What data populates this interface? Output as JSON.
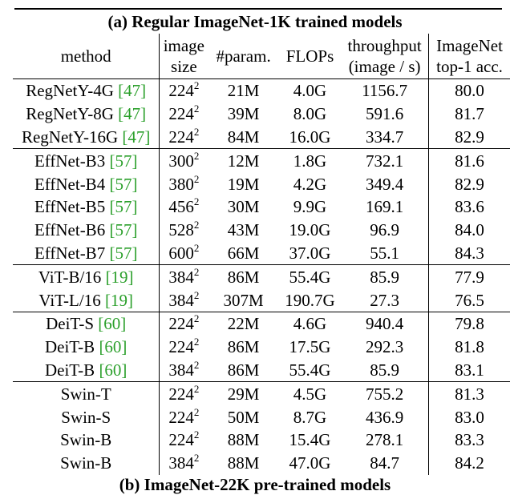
{
  "caption": "(a) Regular ImageNet-1K trained models",
  "headers": {
    "method": "method",
    "image_line1": "image",
    "image_line2": "size",
    "param": "#param.",
    "flops": "FLOPs",
    "throughput_line1": "throughput",
    "throughput_line2": "(image / s)",
    "acc_line1": "ImageNet",
    "acc_line2": "top-1 acc."
  },
  "rows": [
    {
      "name": "RegNetY-4G",
      "ref": "[47]",
      "size": "224",
      "exp": "2",
      "params": "21M",
      "flops": "4.0G",
      "throughput": "1156.7",
      "acc": "80.0"
    },
    {
      "name": "RegNetY-8G",
      "ref": "[47]",
      "size": "224",
      "exp": "2",
      "params": "39M",
      "flops": "8.0G",
      "throughput": "591.6",
      "acc": "81.7"
    },
    {
      "name": "RegNetY-16G",
      "ref": "[47]",
      "size": "224",
      "exp": "2",
      "params": "84M",
      "flops": "16.0G",
      "throughput": "334.7",
      "acc": "82.9"
    },
    {
      "name": "EffNet-B3",
      "ref": "[57]",
      "size": "300",
      "exp": "2",
      "params": "12M",
      "flops": "1.8G",
      "throughput": "732.1",
      "acc": "81.6"
    },
    {
      "name": "EffNet-B4",
      "ref": "[57]",
      "size": "380",
      "exp": "2",
      "params": "19M",
      "flops": "4.2G",
      "throughput": "349.4",
      "acc": "82.9"
    },
    {
      "name": "EffNet-B5",
      "ref": "[57]",
      "size": "456",
      "exp": "2",
      "params": "30M",
      "flops": "9.9G",
      "throughput": "169.1",
      "acc": "83.6"
    },
    {
      "name": "EffNet-B6",
      "ref": "[57]",
      "size": "528",
      "exp": "2",
      "params": "43M",
      "flops": "19.0G",
      "throughput": "96.9",
      "acc": "84.0"
    },
    {
      "name": "EffNet-B7",
      "ref": "[57]",
      "size": "600",
      "exp": "2",
      "params": "66M",
      "flops": "37.0G",
      "throughput": "55.1",
      "acc": "84.3"
    },
    {
      "name": "ViT-B/16",
      "ref": "[19]",
      "size": "384",
      "exp": "2",
      "params": "86M",
      "flops": "55.4G",
      "throughput": "85.9",
      "acc": "77.9"
    },
    {
      "name": "ViT-L/16",
      "ref": "[19]",
      "size": "384",
      "exp": "2",
      "params": "307M",
      "flops": "190.7G",
      "throughput": "27.3",
      "acc": "76.5"
    },
    {
      "name": "DeiT-S",
      "ref": "[60]",
      "size": "224",
      "exp": "2",
      "params": "22M",
      "flops": "4.6G",
      "throughput": "940.4",
      "acc": "79.8"
    },
    {
      "name": "DeiT-B",
      "ref": "[60]",
      "size": "224",
      "exp": "2",
      "params": "86M",
      "flops": "17.5G",
      "throughput": "292.3",
      "acc": "81.8"
    },
    {
      "name": "DeiT-B",
      "ref": "[60]",
      "size": "384",
      "exp": "2",
      "params": "86M",
      "flops": "55.4G",
      "throughput": "85.9",
      "acc": "83.1"
    },
    {
      "name": "Swin-T",
      "ref": "",
      "size": "224",
      "exp": "2",
      "params": "29M",
      "flops": "4.5G",
      "throughput": "755.2",
      "acc": "81.3"
    },
    {
      "name": "Swin-S",
      "ref": "",
      "size": "224",
      "exp": "2",
      "params": "50M",
      "flops": "8.7G",
      "throughput": "436.9",
      "acc": "83.0"
    },
    {
      "name": "Swin-B",
      "ref": "",
      "size": "224",
      "exp": "2",
      "params": "88M",
      "flops": "15.4G",
      "throughput": "278.1",
      "acc": "83.3"
    },
    {
      "name": "Swin-B",
      "ref": "",
      "size": "384",
      "exp": "2",
      "params": "88M",
      "flops": "47.0G",
      "throughput": "84.7",
      "acc": "84.2"
    }
  ],
  "next_caption": "(b) ImageNet-22K pre-trained models",
  "colors": {
    "reference": "#2ca02c",
    "text": "#000000"
  }
}
